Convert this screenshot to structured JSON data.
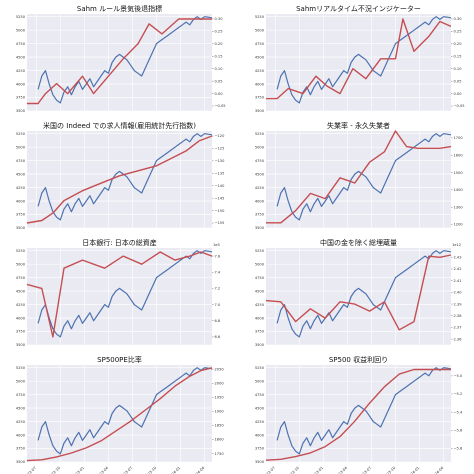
{
  "chart_data": [
    {
      "type": "line",
      "title": "Sahm ルール景気後退指標",
      "left_ticks": [
        "3500",
        "3750",
        "4000",
        "4250",
        "4500",
        "4750",
        "5000",
        "5250"
      ],
      "right_ticks": [
        "−0.05",
        "0.00",
        "0.05",
        "0.10",
        "0.15",
        "0.20",
        "0.25",
        "0.30"
      ],
      "right_offset": "",
      "x_ticks": [],
      "ylim_left": [
        3500,
        5300
      ],
      "ylim_right": [
        -0.07,
        0.32
      ],
      "series": [
        {
          "axis": "right",
          "x": [
            0,
            0.06,
            0.1,
            0.16,
            0.22,
            0.3,
            0.36,
            0.44,
            0.52,
            0.6,
            0.66,
            0.73,
            0.82,
            0.88,
            0.94,
            1.0
          ],
          "values": [
            -0.04,
            -0.04,
            0.0,
            0.04,
            0.0,
            0.07,
            0.0,
            0.07,
            0.14,
            0.2,
            0.28,
            0.24,
            0.3,
            0.3,
            0.3,
            0.3
          ]
        }
      ]
    },
    {
      "type": "line",
      "title": "Sahmリアルタイム不況インジケーター",
      "left_ticks": [
        "3500",
        "3750",
        "4000",
        "4250",
        "4500",
        "4750",
        "5000",
        "5250"
      ],
      "right_ticks": [
        "−0.05",
        "0.00",
        "0.05",
        "0.10",
        "0.15",
        "0.20",
        "0.25",
        "0.30"
      ],
      "right_offset": "",
      "x_ticks": [],
      "ylim_left": [
        3500,
        5300
      ],
      "ylim_right": [
        -0.07,
        0.32
      ],
      "series": [
        {
          "axis": "right",
          "x": [
            0,
            0.06,
            0.12,
            0.2,
            0.27,
            0.33,
            0.4,
            0.47,
            0.54,
            0.62,
            0.7,
            0.74,
            0.8,
            0.88,
            0.94,
            1.0
          ],
          "values": [
            -0.02,
            -0.02,
            0.02,
            0.0,
            0.07,
            0.03,
            0.0,
            0.1,
            0.06,
            0.14,
            0.14,
            0.3,
            0.17,
            0.23,
            0.29,
            0.27
          ]
        }
      ]
    },
    {
      "type": "line",
      "title": "米国の Indeed での求人情報(雇用統計先行指数)",
      "left_ticks": [
        "3500",
        "3750",
        "4000",
        "4250",
        "4500",
        "4750",
        "5000",
        "5250"
      ],
      "right_ticks": [
        "−155",
        "−150",
        "−145",
        "−140",
        "−135",
        "−130",
        "−125",
        "−120"
      ],
      "right_offset": "",
      "x_ticks": [],
      "ylim_left": [
        3500,
        5300
      ],
      "ylim_right": [
        -157,
        -118
      ],
      "series": [
        {
          "axis": "right",
          "x": [
            0,
            0.08,
            0.14,
            0.2,
            0.3,
            0.4,
            0.5,
            0.6,
            0.7,
            0.78,
            0.86,
            0.93,
            1.0
          ],
          "values": [
            -155,
            -154,
            -151,
            -146,
            -142,
            -139,
            -136,
            -134,
            -132,
            -129,
            -126,
            -122,
            -120
          ]
        }
      ]
    },
    {
      "type": "line",
      "title": "失業率 - 永久失業者",
      "left_ticks": [
        "3500",
        "3750",
        "4000",
        "4250",
        "4500",
        "4750",
        "5000",
        "5250"
      ],
      "right_ticks": [
        "1200",
        "1300",
        "1400",
        "1500",
        "1600",
        "1700"
      ],
      "right_offset": "",
      "x_ticks": [],
      "ylim_left": [
        3500,
        5300
      ],
      "ylim_right": [
        1180,
        1740
      ],
      "series": [
        {
          "axis": "right",
          "x": [
            0,
            0.08,
            0.16,
            0.24,
            0.32,
            0.4,
            0.48,
            0.56,
            0.64,
            0.7,
            0.76,
            0.82,
            0.88,
            0.94,
            1.0
          ],
          "values": [
            1210,
            1210,
            1280,
            1380,
            1350,
            1470,
            1440,
            1560,
            1620,
            1740,
            1650,
            1640,
            1640,
            1640,
            1650
          ]
        }
      ]
    },
    {
      "type": "line",
      "title": "日本銀行: 日本の総資産",
      "left_ticks": [
        "3500",
        "3750",
        "4000",
        "4250",
        "4500",
        "4750",
        "5000",
        "5250"
      ],
      "right_ticks": [
        "6.6",
        "6.8",
        "7.0",
        "7.2",
        "7.4",
        "7.6"
      ],
      "right_offset": "1e5",
      "x_ticks": [],
      "ylim_left": [
        3500,
        5300
      ],
      "ylim_right": [
        6.5,
        7.7
      ],
      "series": [
        {
          "axis": "right",
          "x": [
            0,
            0.08,
            0.14,
            0.2,
            0.3,
            0.42,
            0.52,
            0.62,
            0.72,
            0.8,
            0.88,
            0.94,
            1.0
          ],
          "values": [
            7.25,
            7.2,
            6.6,
            7.45,
            7.55,
            7.45,
            7.6,
            7.5,
            7.65,
            7.55,
            7.6,
            7.65,
            7.6
          ]
        }
      ]
    },
    {
      "type": "line",
      "title": "中国の金を除く総埋蔵量",
      "left_ticks": [
        "3500",
        "3750",
        "4000",
        "4250",
        "4500",
        "4750",
        "5000",
        "5250"
      ],
      "right_ticks": [
        "2.36",
        "2.37",
        "2.38",
        "2.39",
        "2.40",
        "2.41",
        "2.42",
        "2.43"
      ],
      "right_offset": "1e12",
      "x_ticks": [],
      "ylim_left": [
        3500,
        5300
      ],
      "ylim_right": [
        2.355,
        2.438
      ],
      "series": [
        {
          "axis": "right",
          "x": [
            0,
            0.08,
            0.16,
            0.24,
            0.32,
            0.4,
            0.48,
            0.56,
            0.64,
            0.72,
            0.8,
            0.88,
            0.94,
            1.0
          ],
          "values": [
            2.393,
            2.392,
            2.375,
            2.386,
            2.378,
            2.392,
            2.39,
            2.384,
            2.392,
            2.368,
            2.375,
            2.431,
            2.43,
            2.432
          ]
        }
      ]
    },
    {
      "type": "line",
      "title": "SP500PE比率",
      "left_ticks": [
        "3500",
        "3750",
        "4000",
        "4250",
        "4500",
        "4750",
        "5000",
        "5250"
      ],
      "right_ticks": [
        "1750",
        "1800",
        "1850",
        "1900",
        "1950",
        "2000",
        "2050"
      ],
      "right_offset": "",
      "x_ticks": [
        "2022-07",
        "2022-10",
        "2023-01",
        "2023-04",
        "2023-07",
        "2023-10",
        "2024-01",
        "2024-04"
      ],
      "ylim_left": [
        3500,
        5300
      ],
      "ylim_right": [
        1720,
        2065
      ],
      "series": [
        {
          "axis": "right",
          "x": [
            0,
            0.08,
            0.16,
            0.24,
            0.32,
            0.4,
            0.48,
            0.56,
            0.64,
            0.72,
            0.8,
            0.88,
            0.94,
            1.0
          ],
          "values": [
            1725,
            1728,
            1738,
            1752,
            1770,
            1795,
            1830,
            1865,
            1905,
            1945,
            1990,
            2025,
            2045,
            2055
          ]
        }
      ]
    },
    {
      "type": "line",
      "title": "SP500 収益利回り",
      "left_ticks": [
        "3500",
        "3750",
        "4000",
        "4250",
        "4500",
        "4750",
        "5000",
        "5250"
      ],
      "right_ticks": [
        "−5.8",
        "−5.6",
        "−5.4",
        "−5.2",
        "−5.0"
      ],
      "right_offset": "",
      "x_ticks": [
        "2022-07",
        "2022-10",
        "2023-01",
        "2023-04",
        "2023-07",
        "2023-10",
        "2024-01",
        "2024-04"
      ],
      "ylim_left": [
        3500,
        5300
      ],
      "ylim_right": [
        -5.95,
        -4.88
      ],
      "series": [
        {
          "axis": "right",
          "x": [
            0,
            0.08,
            0.16,
            0.24,
            0.32,
            0.4,
            0.48,
            0.56,
            0.64,
            0.72,
            0.8,
            0.88,
            0.94,
            1.0
          ],
          "values": [
            -5.93,
            -5.92,
            -5.89,
            -5.85,
            -5.78,
            -5.67,
            -5.5,
            -5.3,
            -5.12,
            -4.98,
            -4.93,
            -4.93,
            -4.93,
            -4.93
          ]
        }
      ]
    }
  ],
  "sp500": {
    "x": [
      0.06,
      0.08,
      0.1,
      0.12,
      0.14,
      0.16,
      0.18,
      0.2,
      0.22,
      0.24,
      0.26,
      0.28,
      0.3,
      0.32,
      0.34,
      0.36,
      0.38,
      0.4,
      0.42,
      0.44,
      0.46,
      0.48,
      0.5,
      0.52,
      0.54,
      0.56,
      0.58,
      0.6,
      0.62,
      0.64,
      0.66,
      0.68,
      0.7,
      0.72,
      0.74,
      0.76,
      0.78,
      0.8,
      0.82,
      0.84,
      0.86,
      0.88,
      0.9,
      0.92,
      0.94,
      0.96,
      0.98,
      1.0
    ],
    "values": [
      3900,
      4150,
      4250,
      4000,
      3800,
      3700,
      3650,
      3850,
      3950,
      3800,
      3950,
      4050,
      3900,
      4000,
      4100,
      3950,
      4050,
      4150,
      4250,
      4200,
      4400,
      4500,
      4550,
      4500,
      4450,
      4350,
      4250,
      4200,
      4150,
      4300,
      4450,
      4600,
      4750,
      4800,
      4850,
      4900,
      4950,
      5000,
      5050,
      5100,
      5150,
      5100,
      5200,
      5250,
      5200,
      5250,
      5240,
      5230
    ]
  },
  "colors": {
    "sp500": "#4c72b0",
    "indicator": "#c44e52",
    "panel_bg": "#eaeaf2"
  }
}
